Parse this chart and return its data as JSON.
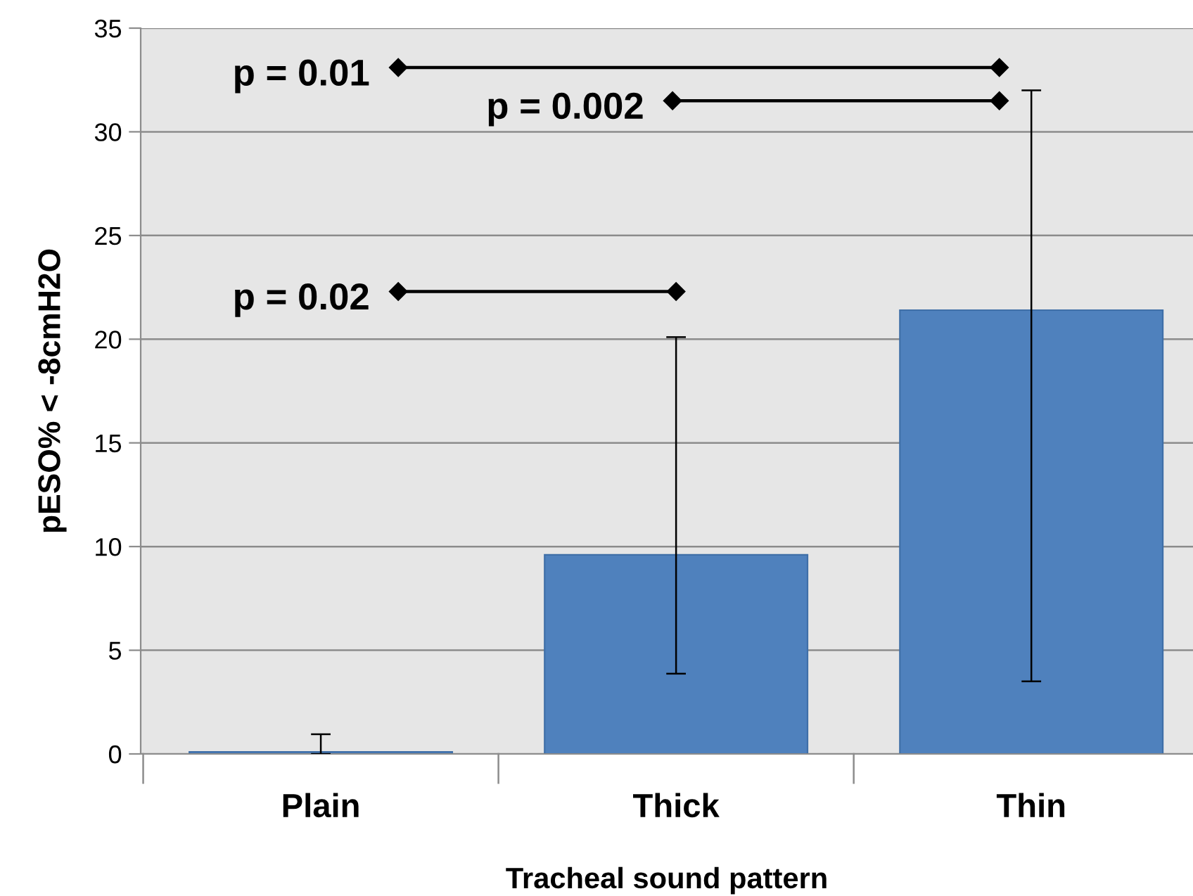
{
  "chart_data": {
    "type": "bar",
    "xlabel": "Tracheal sound pattern",
    "ylabel": "pESO% < -8cmH2O",
    "categories": [
      "Plain",
      "Thick",
      "Thin"
    ],
    "values": [
      0.1,
      9.6,
      21.4
    ],
    "errors": [
      [
        0,
        0.95
      ],
      [
        3.87,
        20.1
      ],
      [
        3.5,
        32
      ]
    ],
    "color": "#4f81bd",
    "ylim": [
      0,
      35
    ],
    "yticks": [
      0,
      5,
      10,
      15,
      20,
      25,
      30,
      35
    ],
    "grid": "y",
    "annotations": [
      "p = 0.01",
      "p = 0.002",
      "p = 0.02"
    ]
  }
}
